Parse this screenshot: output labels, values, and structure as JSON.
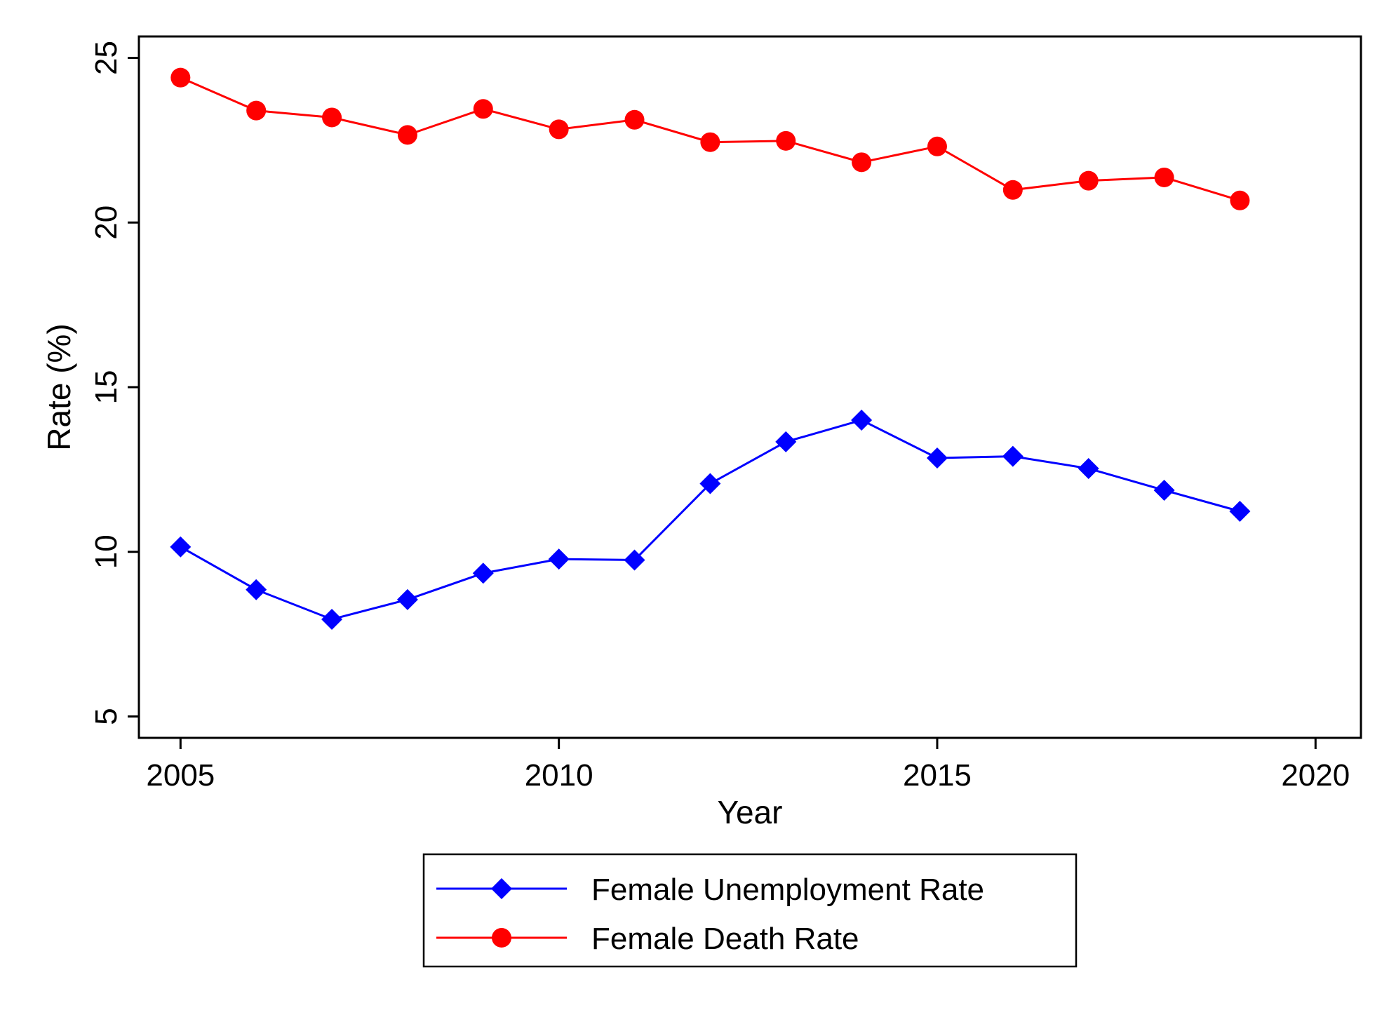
{
  "chart_data": {
    "type": "line",
    "title": "",
    "xlabel": "Year",
    "ylabel": "Rate (%)",
    "xlim": [
      2004.45,
      2020.6
    ],
    "ylim": [
      4.35,
      25.65
    ],
    "x_ticks": [
      2005,
      2010,
      2015,
      2020
    ],
    "y_ticks": [
      5,
      10,
      15,
      20,
      25
    ],
    "grid": false,
    "legend_position": "bottom",
    "x": [
      2005,
      2006,
      2007,
      2008,
      2009,
      2010,
      2011,
      2012,
      2013,
      2014,
      2015,
      2016,
      2017,
      2018,
      2019
    ],
    "series": [
      {
        "name": "Female Unemployment Rate",
        "color": "#0000ff",
        "marker": "diamond",
        "values": [
          10.15,
          8.85,
          7.95,
          8.55,
          9.35,
          9.78,
          9.75,
          12.07,
          13.34,
          14.0,
          12.85,
          12.9,
          12.53,
          11.87,
          11.23
        ]
      },
      {
        "name": "Female Death Rate",
        "color": "#ff0000",
        "marker": "circle",
        "values": [
          24.4,
          23.4,
          23.19,
          22.66,
          23.45,
          22.83,
          23.12,
          22.44,
          22.48,
          21.83,
          22.31,
          20.99,
          21.27,
          21.37,
          20.67
        ]
      }
    ]
  }
}
